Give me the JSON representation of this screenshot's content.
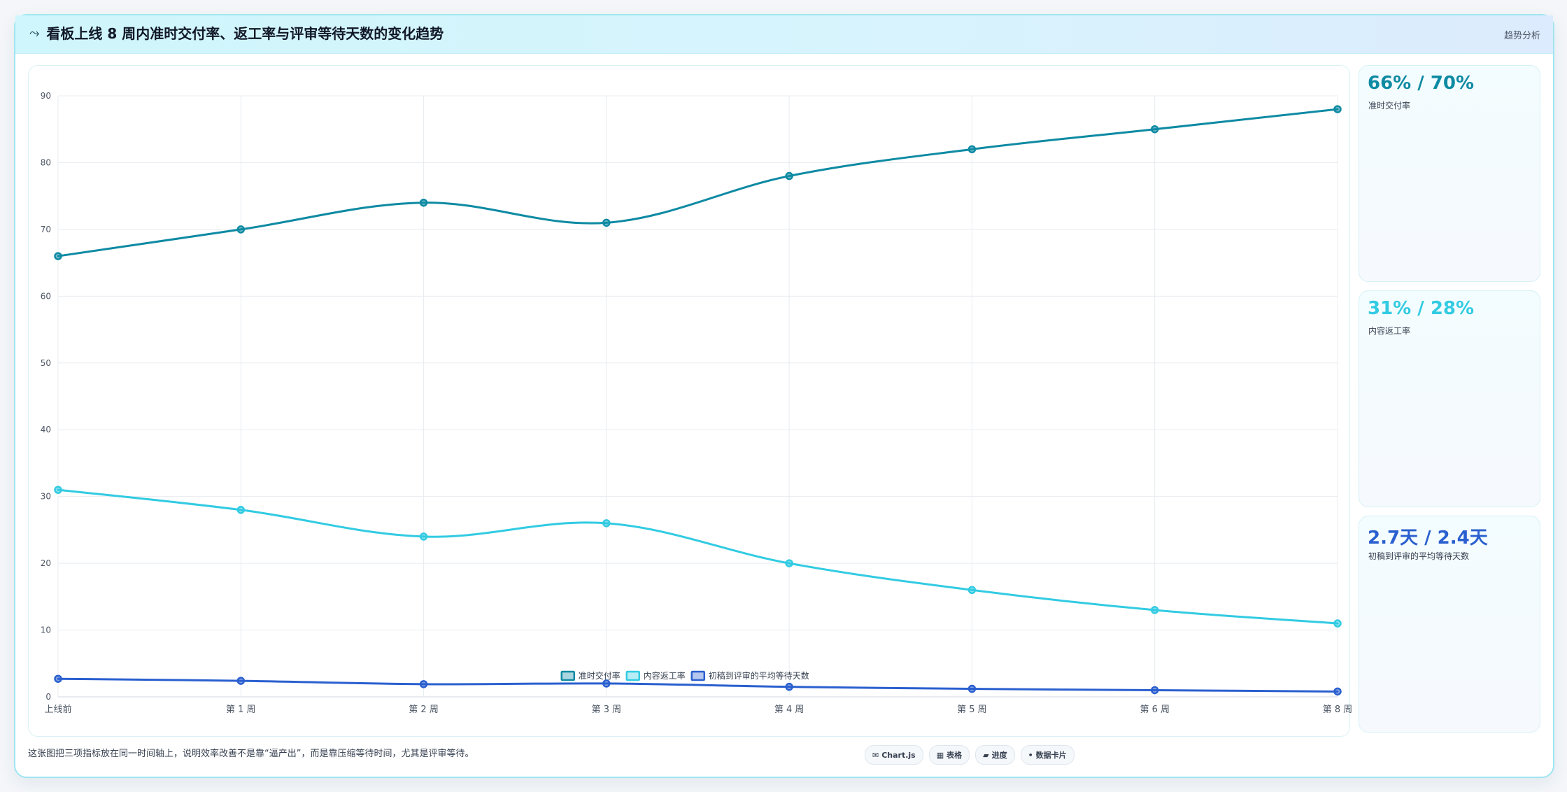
{
  "header": {
    "icon": "trend-line-icon",
    "title": "看板上线 8 周内准时交付率、返工率与评审等待天数的变化趋势",
    "tag": "趋势分析"
  },
  "colors": {
    "ontime": "#0e8aa3",
    "rework": "#32cbe2",
    "wait": "#2a5fcf"
  },
  "chart_data": {
    "type": "line",
    "categories": [
      "上线前",
      "第 1 周",
      "第 2 周",
      "第 3 周",
      "第 4 周",
      "第 5 周",
      "第 6 周",
      "第 8 周"
    ],
    "ylim": [
      0,
      90
    ],
    "yticks": [
      0,
      10,
      20,
      30,
      40,
      50,
      60,
      70,
      80,
      90
    ],
    "grid": true,
    "legend_position": "bottom",
    "series": [
      {
        "name": "准时交付率",
        "color": "#0e8aa3",
        "values": [
          66,
          70,
          74,
          71,
          78,
          82,
          85,
          88
        ]
      },
      {
        "name": "内容返工率",
        "color": "#32cbe2",
        "values": [
          31,
          28,
          24,
          26,
          20,
          16,
          13,
          11
        ]
      },
      {
        "name": "初稿到评审的平均等待天数",
        "color": "#2a5fcf",
        "values": [
          2.7,
          2.4,
          1.9,
          2.0,
          1.5,
          1.2,
          1.0,
          0.8
        ]
      }
    ]
  },
  "stats": [
    {
      "value": "66% / 70%",
      "label": "准时交付率",
      "color": "#0e8aa3"
    },
    {
      "value": "31% / 28%",
      "label": "内容返工率",
      "color": "#32cbe2"
    },
    {
      "value": "2.7天 / 2.4天",
      "label": "初稿到评审的平均等待天数",
      "color": "#2a5fcf"
    }
  ],
  "footnote": "这张图把三项指标放在同一时间轴上，说明效率改善不是靠“逼产出”，而是靠压缩等待时间，尤其是评审等待。",
  "chips": [
    {
      "icon": "chart-icon",
      "glyph": "✉",
      "label": "Chart.js"
    },
    {
      "icon": "table-icon",
      "glyph": "▦",
      "label": "表格"
    },
    {
      "icon": "progress-icon",
      "glyph": "▰",
      "label": "进度"
    },
    {
      "icon": "card-icon",
      "glyph": "•",
      "label": "数据卡片"
    }
  ]
}
